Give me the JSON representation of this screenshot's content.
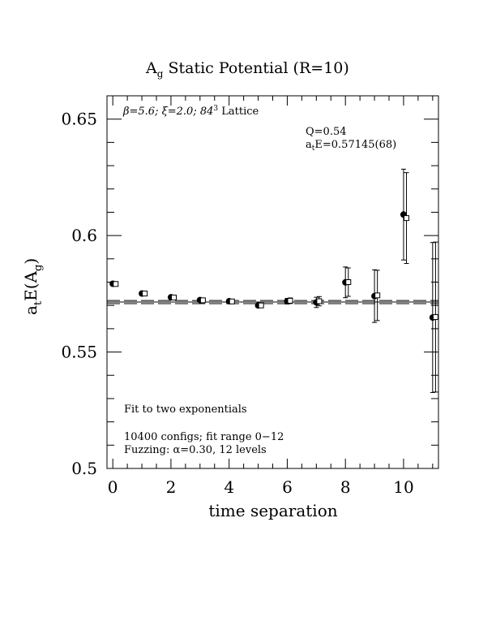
{
  "chart_data": {
    "type": "scatter",
    "title_main": "A",
    "title_sub": "g",
    "title_rest": " Static Potential (R=10)",
    "xlabel": "time separation",
    "ylabel_a": "a",
    "ylabel_t": "t",
    "ylabel_mid": "E(A",
    "ylabel_g": "g",
    "ylabel_end": ")",
    "xlim": [
      -0.2,
      11.2
    ],
    "ylim": [
      0.5,
      0.66
    ],
    "x_ticks": [
      0,
      2,
      4,
      6,
      8,
      10
    ],
    "x_tick_labels": [
      "0",
      "2",
      "4",
      "6",
      "8",
      "10"
    ],
    "y_ticks": [
      0.5,
      0.55,
      0.6,
      0.65
    ],
    "y_tick_labels": [
      "0.5",
      "0.55",
      "0.6",
      "0.65"
    ],
    "annotations": {
      "lattice_pre": "β=5.6; ξ=2.0; 84",
      "lattice_sup": "3",
      "lattice_post": " Lattice",
      "q": "Q=0.54",
      "fit_a": "a",
      "fit_t": "t",
      "fit_rest": "E=0.57145(68)",
      "fit_type": "Fit to two exponentials",
      "configs": "10400 configs; fit range 0−12",
      "fuzzing": "Fuzzing: α=0.30, 12 levels"
    },
    "fit": {
      "value": 0.57145,
      "error": 0.00068
    },
    "series": [
      {
        "marker": "filled-circle",
        "x": [
          0,
          1,
          2,
          3,
          4,
          5,
          6,
          7,
          8,
          9,
          10,
          11
        ],
        "y": [
          0.5793,
          0.5751,
          0.5735,
          0.5723,
          0.5718,
          0.57,
          0.5718,
          0.5713,
          0.5799,
          0.574,
          0.609,
          0.5648
        ],
        "err": [
          0.0005,
          0.0005,
          0.0005,
          0.0006,
          0.0007,
          0.0008,
          0.0012,
          0.0022,
          0.0066,
          0.0113,
          0.0195,
          0.0322
        ]
      },
      {
        "marker": "open-square",
        "x": [
          0.1,
          1.1,
          2.1,
          3.1,
          4.1,
          5.1,
          6.1,
          7.1,
          8.1,
          9.1,
          10.1,
          11.1
        ],
        "y": [
          0.5792,
          0.5751,
          0.5734,
          0.5722,
          0.5717,
          0.57,
          0.572,
          0.5718,
          0.58,
          0.5743,
          0.6075,
          0.565
        ],
        "err": [
          0.0005,
          0.0005,
          0.0005,
          0.0006,
          0.0007,
          0.0008,
          0.0012,
          0.002,
          0.0061,
          0.0108,
          0.0195,
          0.0322
        ]
      }
    ]
  }
}
